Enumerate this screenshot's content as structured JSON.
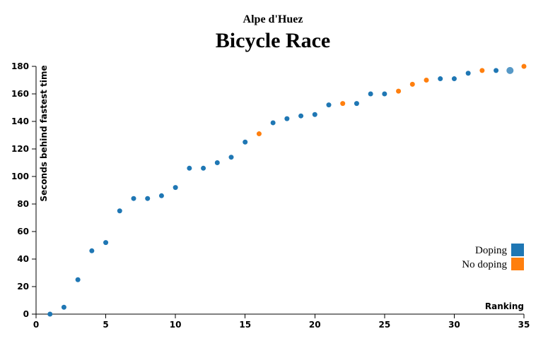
{
  "chart_data": {
    "type": "scatter",
    "subtitle": "Alpe d'Huez",
    "title": "Bicycle Race",
    "xlabel": "Ranking",
    "ylabel": "Seconds behind fastest time",
    "xlim": [
      0,
      35
    ],
    "ylim": [
      0,
      180
    ],
    "xticks": [
      0,
      5,
      10,
      15,
      20,
      25,
      30,
      35
    ],
    "yticks": [
      0,
      20,
      40,
      60,
      80,
      100,
      120,
      140,
      160,
      180
    ],
    "grid": false,
    "legend_position": "bottom-right",
    "legend": [
      {
        "label": "Doping",
        "color": "#1f77b4"
      },
      {
        "label": "No doping",
        "color": "#ff7f0e"
      }
    ],
    "points": [
      {
        "x": 1,
        "y": 0,
        "doping": true
      },
      {
        "x": 2,
        "y": 5,
        "doping": true
      },
      {
        "x": 3,
        "y": 25,
        "doping": true
      },
      {
        "x": 4,
        "y": 46,
        "doping": true
      },
      {
        "x": 5,
        "y": 52,
        "doping": true
      },
      {
        "x": 6,
        "y": 75,
        "doping": true
      },
      {
        "x": 7,
        "y": 84,
        "doping": true
      },
      {
        "x": 8,
        "y": 84,
        "doping": true
      },
      {
        "x": 9,
        "y": 86,
        "doping": true
      },
      {
        "x": 10,
        "y": 92,
        "doping": true
      },
      {
        "x": 11,
        "y": 106,
        "doping": true
      },
      {
        "x": 12,
        "y": 106,
        "doping": true
      },
      {
        "x": 13,
        "y": 110,
        "doping": true
      },
      {
        "x": 14,
        "y": 114,
        "doping": true
      },
      {
        "x": 15,
        "y": 125,
        "doping": true
      },
      {
        "x": 16,
        "y": 131,
        "doping": false
      },
      {
        "x": 17,
        "y": 139,
        "doping": true
      },
      {
        "x": 18,
        "y": 142,
        "doping": true
      },
      {
        "x": 19,
        "y": 144,
        "doping": true
      },
      {
        "x": 20,
        "y": 145,
        "doping": true
      },
      {
        "x": 21,
        "y": 152,
        "doping": true
      },
      {
        "x": 22,
        "y": 153,
        "doping": false
      },
      {
        "x": 23,
        "y": 153,
        "doping": true
      },
      {
        "x": 24,
        "y": 160,
        "doping": true
      },
      {
        "x": 25,
        "y": 160,
        "doping": true
      },
      {
        "x": 26,
        "y": 162,
        "doping": false
      },
      {
        "x": 27,
        "y": 167,
        "doping": false
      },
      {
        "x": 28,
        "y": 170,
        "doping": false
      },
      {
        "x": 29,
        "y": 171,
        "doping": true
      },
      {
        "x": 30,
        "y": 171,
        "doping": true
      },
      {
        "x": 31,
        "y": 175,
        "doping": true
      },
      {
        "x": 32,
        "y": 177,
        "doping": false
      },
      {
        "x": 33,
        "y": 177,
        "doping": true
      },
      {
        "x": 34,
        "y": 177,
        "doping": true,
        "highlighted": true
      },
      {
        "x": 35,
        "y": 180,
        "doping": false
      }
    ]
  }
}
